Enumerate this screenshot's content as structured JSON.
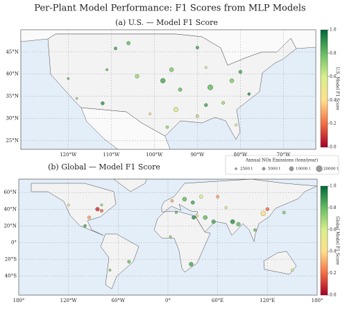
{
  "title": "Per-Plant Model Performance: F1 Scores from MLP Models",
  "colormap": [
    "#a50026",
    "#f46d43",
    "#fee08b",
    "#d9ef8b",
    "#66bd63",
    "#006837"
  ],
  "size_legend": {
    "title": "Annual NOx Emissions (tons/year)",
    "items": [
      {
        "value": 2500,
        "label": "2500 t"
      },
      {
        "value": 5000,
        "label": "5000 t"
      },
      {
        "value": 10000,
        "label": "10000 t"
      },
      {
        "value": 20000,
        "label": "20000 t"
      }
    ]
  },
  "chart_data": [
    {
      "type": "scatter",
      "title": "(a) U.S. — Model F1 Score",
      "colorbar_label": "U.S. Model F1 Score",
      "xlim": [
        -131,
        -62.5
      ],
      "ylim": [
        23,
        50
      ],
      "xticks": [
        {
          "value": -120,
          "label": "120°W"
        },
        {
          "value": -110,
          "label": "110°W"
        },
        {
          "value": -100,
          "label": "100°W"
        },
        {
          "value": -90,
          "label": "90°W"
        },
        {
          "value": -80,
          "label": "80°W"
        },
        {
          "value": -70,
          "label": "70°W"
        }
      ],
      "yticks": [
        {
          "value": 25,
          "label": "25°N"
        },
        {
          "value": 30,
          "label": "30°N"
        },
        {
          "value": 35,
          "label": "35°N"
        },
        {
          "value": 40,
          "label": "40°N"
        },
        {
          "value": 45,
          "label": "45°N"
        }
      ],
      "clim": [
        0,
        1
      ],
      "cticks": [
        {
          "value": 0,
          "label": "0.0"
        },
        {
          "value": 0.2,
          "label": "0.2"
        },
        {
          "value": 0.4,
          "label": "0.4"
        },
        {
          "value": 0.6,
          "label": "0.6"
        },
        {
          "value": 0.8,
          "label": "0.8"
        },
        {
          "value": 1,
          "label": "1.0"
        }
      ],
      "grid": true,
      "x": [
        -112,
        -111,
        -109,
        -104,
        -98,
        -96,
        -94,
        -95,
        -97,
        -90,
        -88,
        -87,
        -84,
        -82,
        -81,
        -78,
        -80,
        -88,
        -90,
        -106,
        -118,
        -120,
        -101
      ],
      "y": [
        33.4,
        41,
        45.8,
        39.5,
        38.5,
        41,
        36.5,
        32,
        28,
        30.5,
        33,
        37,
        33.5,
        38.5,
        28.5,
        35.5,
        40.5,
        41.5,
        46,
        47,
        34.5,
        39,
        31
      ],
      "values": [
        0.9,
        0.8,
        0.85,
        0.7,
        0.85,
        0.75,
        0.8,
        0.6,
        0.7,
        0.65,
        0.85,
        0.8,
        0.7,
        0.75,
        0.55,
        0.9,
        0.85,
        0.6,
        0.85,
        0.8,
        0.7,
        0.8,
        0.4
      ],
      "sizes": [
        6000,
        3000,
        5000,
        8000,
        12000,
        9000,
        7000,
        10000,
        4000,
        5000,
        6000,
        14000,
        5000,
        9000,
        3000,
        4000,
        6000,
        3000,
        5000,
        7000,
        2500,
        2500,
        3000
      ]
    },
    {
      "type": "scatter",
      "title": "(b) Global — Model F1 Score",
      "colorbar_label": "Global Model F1 Score",
      "xlim": [
        -180,
        180
      ],
      "ylim": [
        -63,
        76
      ],
      "xticks": [
        {
          "value": -180,
          "label": "180°"
        },
        {
          "value": -120,
          "label": "120°W"
        },
        {
          "value": -60,
          "label": "60°W"
        },
        {
          "value": 0,
          "label": "0°"
        },
        {
          "value": 60,
          "label": "60°E"
        },
        {
          "value": 120,
          "label": "120°E"
        },
        {
          "value": 180,
          "label": "180°"
        }
      ],
      "yticks": [
        {
          "value": -40,
          "label": "40°S"
        },
        {
          "value": -20,
          "label": "20°S"
        },
        {
          "value": 0,
          "label": "0°"
        },
        {
          "value": 20,
          "label": "20°N"
        },
        {
          "value": 40,
          "label": "40°N"
        },
        {
          "value": 60,
          "label": "60°N"
        }
      ],
      "clim": [
        0,
        1
      ],
      "cticks": [
        {
          "value": 0,
          "label": "0.0"
        },
        {
          "value": 0.2,
          "label": "0.2"
        },
        {
          "value": 0.4,
          "label": "0.4"
        },
        {
          "value": 0.6,
          "label": "0.6"
        },
        {
          "value": 0.8,
          "label": "0.8"
        },
        {
          "value": 1,
          "label": "1.0"
        }
      ],
      "grid": true,
      "x": [
        -85,
        -80,
        -95,
        -100,
        -80,
        -120,
        -47,
        -70,
        5,
        20,
        30,
        40,
        55,
        45,
        35,
        78,
        85,
        115,
        120,
        105,
        28,
        3,
        31,
        140,
        150,
        70,
        10,
        60
      ],
      "y": [
        40,
        38,
        30,
        20,
        45,
        45,
        -23,
        -33,
        50,
        52,
        48,
        55,
        25,
        30,
        32,
        25,
        22,
        35,
        40,
        15,
        -26,
        7,
        30,
        36,
        -33,
        42,
        36,
        55
      ],
      "values": [
        0.1,
        0.2,
        0.3,
        0.85,
        0.7,
        0.5,
        0.8,
        0.75,
        0.3,
        0.8,
        0.85,
        0.6,
        0.85,
        0.8,
        0.5,
        0.9,
        0.8,
        0.4,
        0.2,
        0.8,
        0.85,
        0.7,
        0.9,
        0.75,
        0.6,
        0.5,
        0.8,
        0.3
      ],
      "sizes": [
        8000,
        5000,
        6000,
        4000,
        3000,
        3000,
        5000,
        3000,
        4000,
        9000,
        7000,
        6000,
        8000,
        9000,
        4000,
        10000,
        8000,
        12000,
        6000,
        4000,
        9000,
        3000,
        7000,
        5000,
        4000,
        3000,
        3000,
        5000
      ]
    }
  ]
}
